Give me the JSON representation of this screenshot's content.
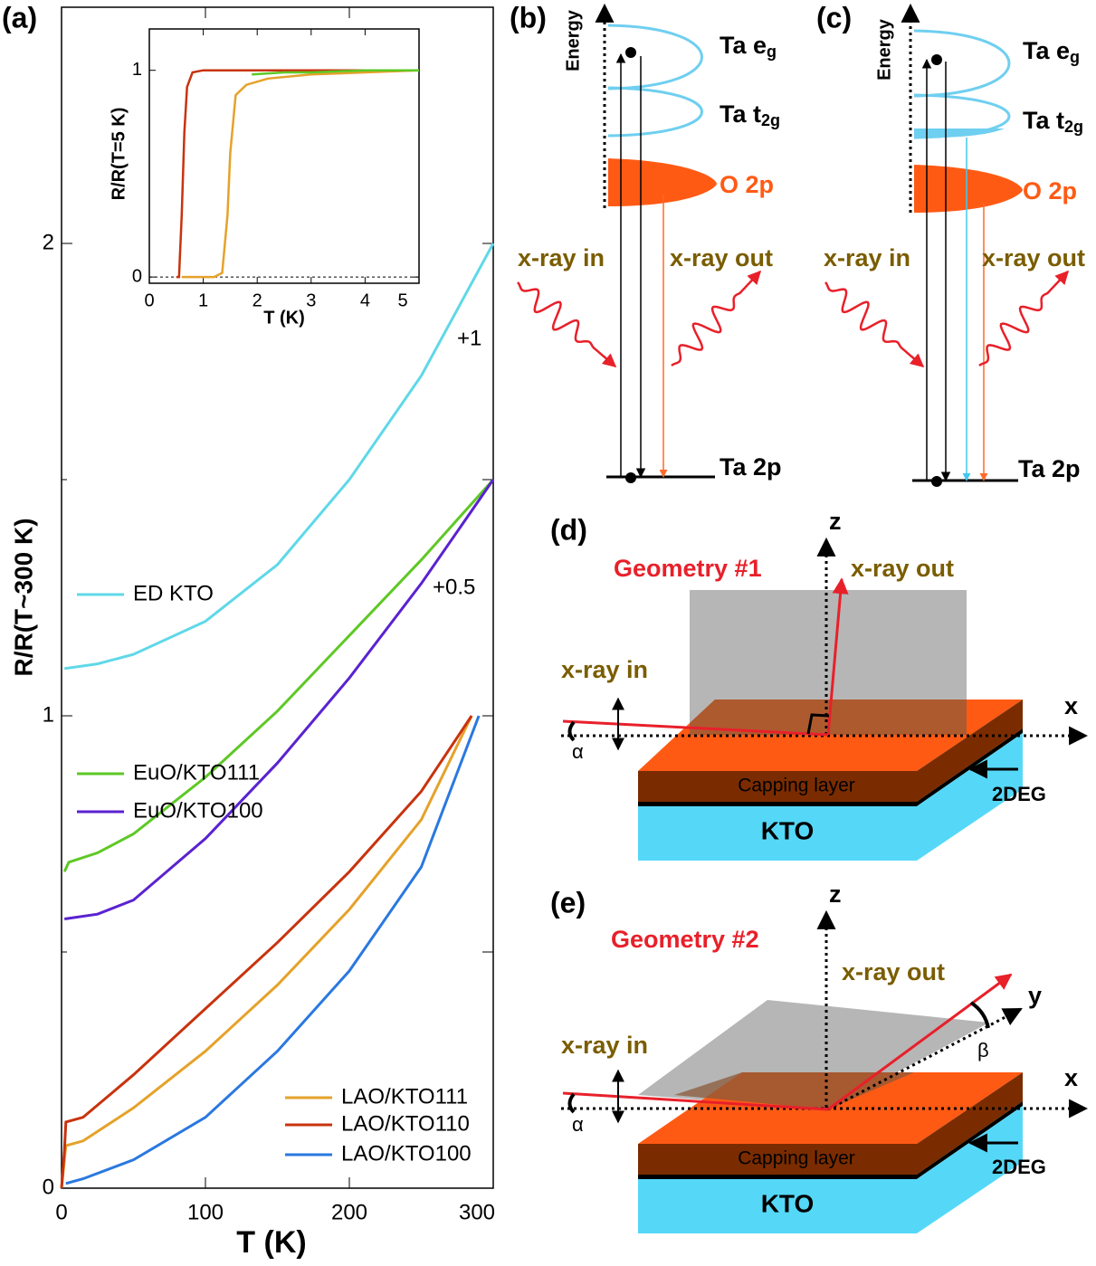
{
  "chart_data": [
    {
      "type": "line",
      "panel_label": "(a)",
      "xlabel": "T (K)",
      "ylabel": "R/R(T~300 K)",
      "xlim": [
        0,
        300
      ],
      "xticks": [
        0,
        100,
        200,
        300
      ],
      "ylim": [
        0,
        2.5
      ],
      "yticks": [
        0,
        1,
        2
      ],
      "yminor": [
        0.5,
        1.5
      ],
      "annotations": [
        "+1",
        "+0.5"
      ],
      "series": [
        {
          "name": "ED KTO",
          "color": "#5fd8e8",
          "x": [
            2,
            25,
            50,
            100,
            150,
            200,
            250,
            300
          ],
          "values": [
            1.1,
            1.11,
            1.13,
            1.2,
            1.32,
            1.5,
            1.72,
            2.0
          ]
        },
        {
          "name": "EuO/KTO111",
          "color": "#5ec825",
          "x": [
            2,
            5,
            25,
            50,
            100,
            150,
            200,
            250,
            300
          ],
          "values": [
            0.67,
            0.69,
            0.71,
            0.75,
            0.87,
            1.01,
            1.17,
            1.33,
            1.5
          ]
        },
        {
          "name": "EuO/KTO100",
          "color": "#5a22d0",
          "x": [
            2,
            25,
            50,
            100,
            150,
            200,
            250,
            300
          ],
          "values": [
            0.57,
            0.58,
            0.61,
            0.74,
            0.9,
            1.08,
            1.28,
            1.5
          ]
        },
        {
          "name": "LAO/KTO111",
          "color": "#e5a22a",
          "x": [
            0,
            2,
            3,
            15,
            50,
            100,
            150,
            200,
            250,
            285
          ],
          "values": [
            0,
            0.06,
            0.09,
            0.1,
            0.17,
            0.29,
            0.43,
            0.59,
            0.78,
            1.0
          ]
        },
        {
          "name": "LAO/KTO110",
          "color": "#c8330e",
          "x": [
            0,
            2,
            3,
            15,
            50,
            100,
            150,
            200,
            250,
            285
          ],
          "values": [
            0,
            0.08,
            0.14,
            0.15,
            0.24,
            0.38,
            0.52,
            0.67,
            0.84,
            1.0
          ]
        },
        {
          "name": "LAO/KTO100",
          "color": "#2a78e0",
          "x": [
            3,
            15,
            50,
            100,
            150,
            200,
            250,
            290
          ],
          "values": [
            0.01,
            0.02,
            0.06,
            0.15,
            0.29,
            0.46,
            0.68,
            1.0
          ]
        }
      ]
    },
    {
      "type": "line",
      "xlabel": "T (K)",
      "ylabel": "R/R(T=5 K)",
      "xlim": [
        0,
        5
      ],
      "xticks": [
        0,
        1,
        2,
        3,
        4,
        5
      ],
      "ylim": [
        -0.03,
        1.2
      ],
      "yticks": [
        0,
        1
      ],
      "series": [
        {
          "color": "#c8330e",
          "x": [
            0.5,
            0.55,
            0.6,
            0.65,
            0.7,
            0.8,
            1,
            2,
            3,
            4,
            5
          ],
          "values": [
            0,
            0,
            0.3,
            0.7,
            0.92,
            0.99,
            1,
            1,
            1,
            1,
            1
          ]
        },
        {
          "color": "#e5a22a",
          "x": [
            0.6,
            1.2,
            1.35,
            1.45,
            1.5,
            1.6,
            1.8,
            2.2,
            3,
            4,
            5
          ],
          "values": [
            0,
            0,
            0.02,
            0.3,
            0.6,
            0.88,
            0.93,
            0.96,
            0.98,
            0.99,
            1
          ]
        },
        {
          "color": "#5ec825",
          "x": [
            1.9,
            2.5,
            3,
            4,
            5
          ],
          "values": [
            0.98,
            0.99,
            0.99,
            1,
            1
          ]
        }
      ]
    }
  ],
  "panels": {
    "b": {
      "label": "(b)",
      "energy": "Energy",
      "eg": {
        "text": "Ta e",
        "sub": "g"
      },
      "t2g": {
        "text": "Ta t",
        "sub": "2g"
      },
      "o2p": "O 2p",
      "xray_in": "x-ray in",
      "xray_out": "x-ray out",
      "ta2p": "Ta 2p"
    },
    "c": {
      "label": "(c)",
      "energy": "Energy",
      "eg": {
        "text": "Ta e",
        "sub": "g"
      },
      "t2g": {
        "text": "Ta t",
        "sub": "2g"
      },
      "o2p": "O 2p",
      "xray_in": "x-ray in",
      "xray_out": "x-ray out",
      "ta2p": "Ta 2p"
    },
    "d": {
      "label": "(d)",
      "geometry": "Geometry #1",
      "z": "z",
      "x": "x",
      "xray_out": "x-ray out",
      "xray_in": "x-ray in",
      "alpha": "α",
      "capping": "Capping layer",
      "deg": "2DEG",
      "kto": "KTO"
    },
    "e": {
      "label": "(e)",
      "geometry": "Geometry #2",
      "z": "z",
      "x": "x",
      "y": "y",
      "beta": "β",
      "xray_out": "x-ray out",
      "xray_in": "x-ray in",
      "alpha": "α",
      "capping": "Capping layer",
      "deg": "2DEG",
      "kto": "KTO"
    }
  }
}
